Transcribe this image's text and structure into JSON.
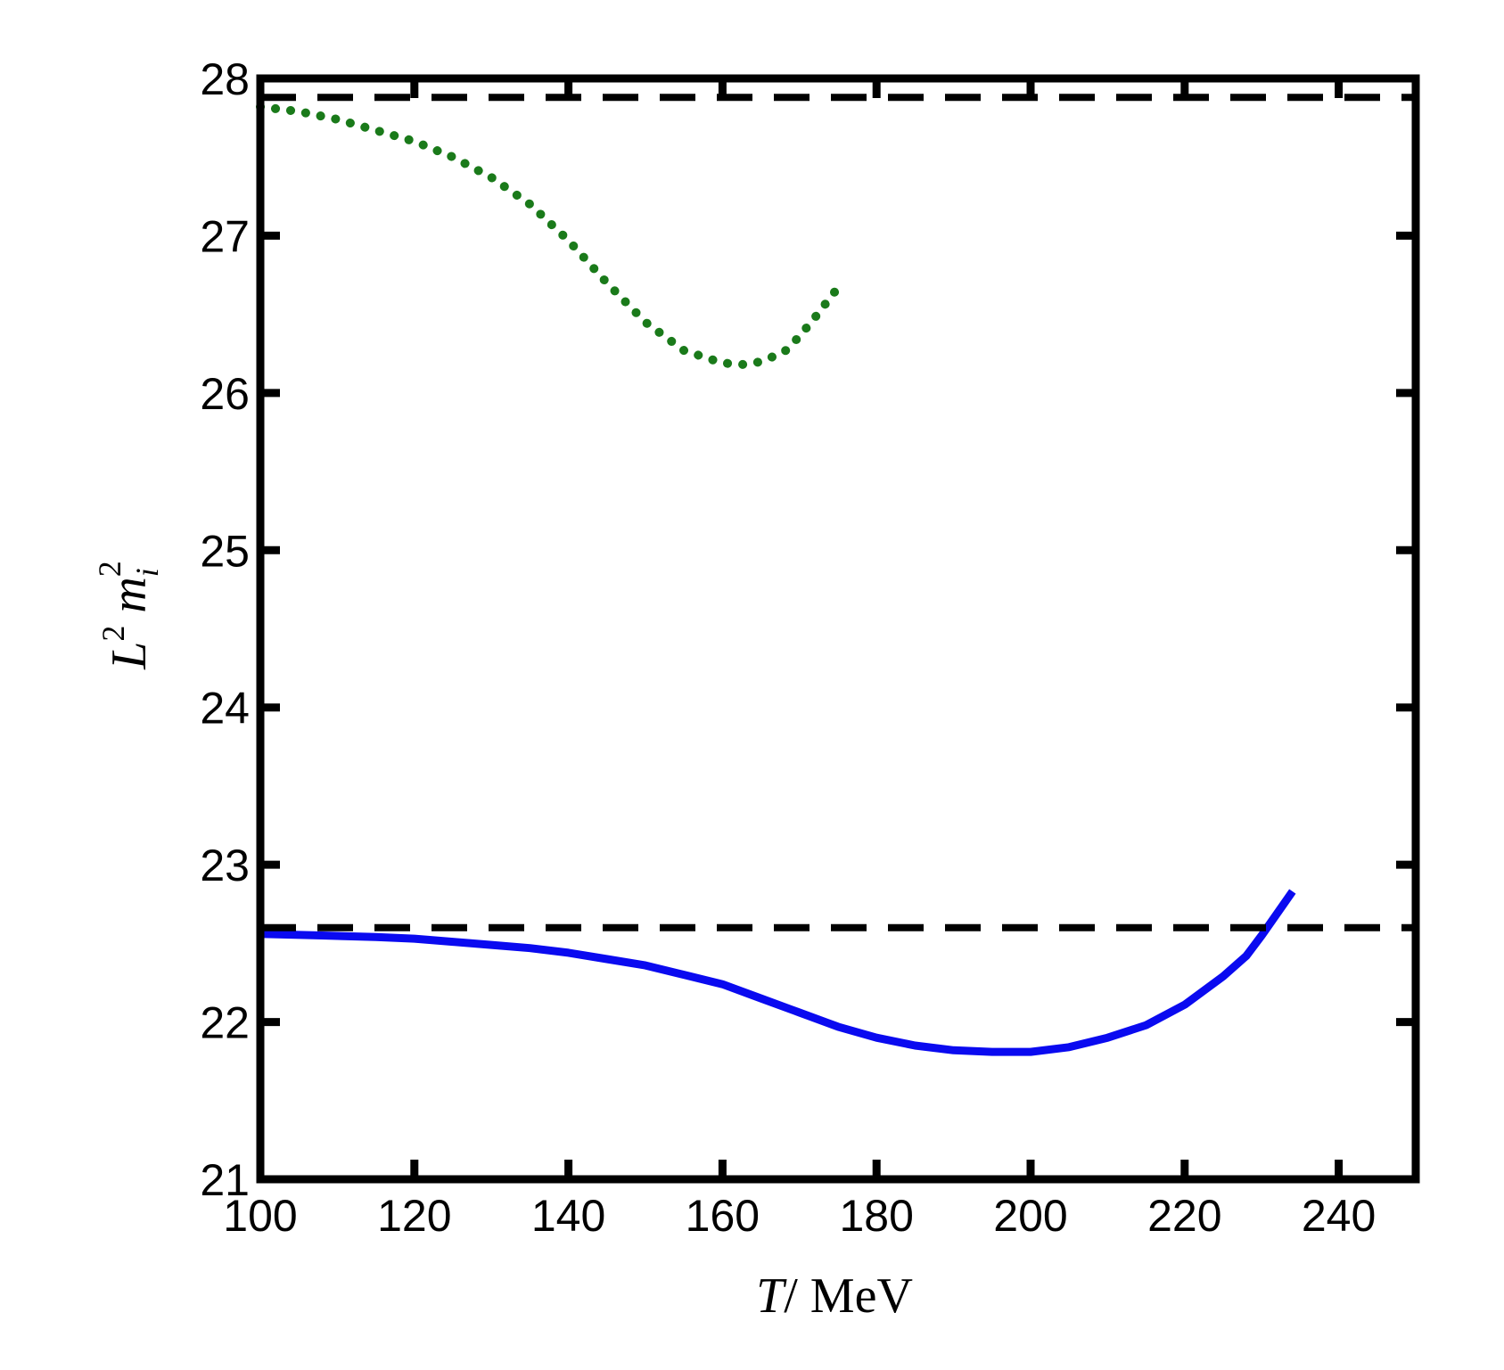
{
  "chart_data": {
    "type": "line",
    "xlabel": {
      "var": "T",
      "rest": "/ MeV"
    },
    "ylabel": {
      "base": "L",
      "sup": "2",
      "var": "m",
      "sub": "i",
      "sup2": "2"
    },
    "xlim": [
      100,
      250
    ],
    "ylim": [
      21,
      28
    ],
    "xticks": [
      100,
      120,
      140,
      160,
      180,
      200,
      220,
      240
    ],
    "yticks": [
      21,
      22,
      23,
      24,
      25,
      26,
      27,
      28
    ],
    "grid": false,
    "series": [
      {
        "style": "dotted",
        "color": "#1a7a1a",
        "x": [
          100,
          105,
          110,
          115,
          120,
          125,
          130,
          135,
          140,
          145,
          150,
          155,
          160,
          163,
          165,
          168,
          170,
          172,
          175
        ],
        "y": [
          27.82,
          27.79,
          27.74,
          27.67,
          27.6,
          27.5,
          27.37,
          27.2,
          26.97,
          26.7,
          26.45,
          26.27,
          26.19,
          26.18,
          26.2,
          26.26,
          26.36,
          26.48,
          26.67
        ]
      },
      {
        "style": "solid",
        "color": "#0a0af0",
        "x": [
          100,
          108,
          115,
          120,
          125,
          130,
          135,
          140,
          145,
          150,
          155,
          160,
          165,
          170,
          175,
          180,
          185,
          190,
          195,
          200,
          205,
          210,
          215,
          220,
          225,
          228,
          230,
          234
        ],
        "y": [
          22.56,
          22.55,
          22.54,
          22.53,
          22.51,
          22.49,
          22.47,
          22.44,
          22.4,
          22.36,
          22.3,
          22.24,
          22.15,
          22.06,
          21.97,
          21.9,
          21.85,
          21.82,
          21.81,
          21.81,
          21.84,
          21.9,
          21.98,
          22.11,
          22.29,
          22.42,
          22.55,
          22.83
        ]
      },
      {
        "style": "dashed",
        "color": "#000000",
        "x": [
          100,
          250
        ],
        "y": [
          27.88,
          27.88
        ]
      },
      {
        "style": "dashed",
        "color": "#000000",
        "x": [
          100,
          250
        ],
        "y": [
          22.6,
          22.6
        ]
      }
    ]
  }
}
